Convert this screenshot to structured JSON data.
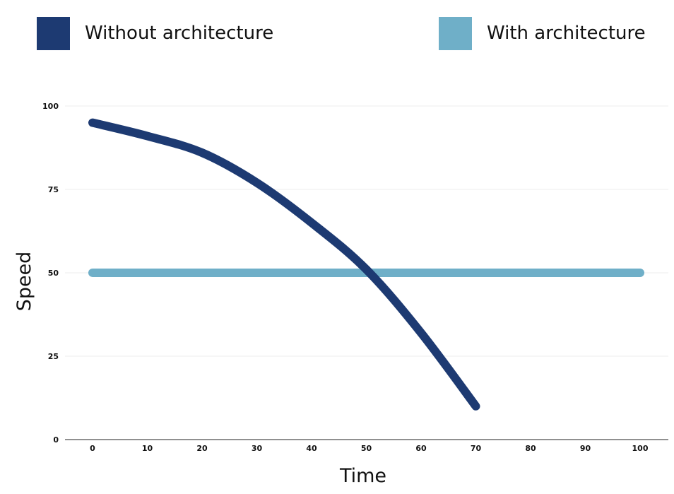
{
  "chart_data": {
    "type": "line",
    "title": "",
    "xlabel": "Time",
    "ylabel": "Speed",
    "xlim": [
      0,
      100
    ],
    "ylim": [
      0,
      100
    ],
    "x_ticks": [
      0,
      10,
      20,
      30,
      40,
      50,
      60,
      70,
      80,
      90,
      100
    ],
    "y_ticks": [
      0,
      25,
      50,
      75,
      100
    ],
    "grid": "horizontal",
    "legend_position": "top",
    "series": [
      {
        "name": "Without architecture",
        "color": "#1d3a72",
        "x": [
          0,
          10,
          20,
          30,
          40,
          50,
          60,
          70
        ],
        "y": [
          95,
          91,
          86,
          77,
          65,
          51,
          32,
          10
        ]
      },
      {
        "name": "With architecture",
        "color": "#6fafc8",
        "x": [
          0,
          100
        ],
        "y": [
          50,
          50
        ]
      }
    ]
  }
}
